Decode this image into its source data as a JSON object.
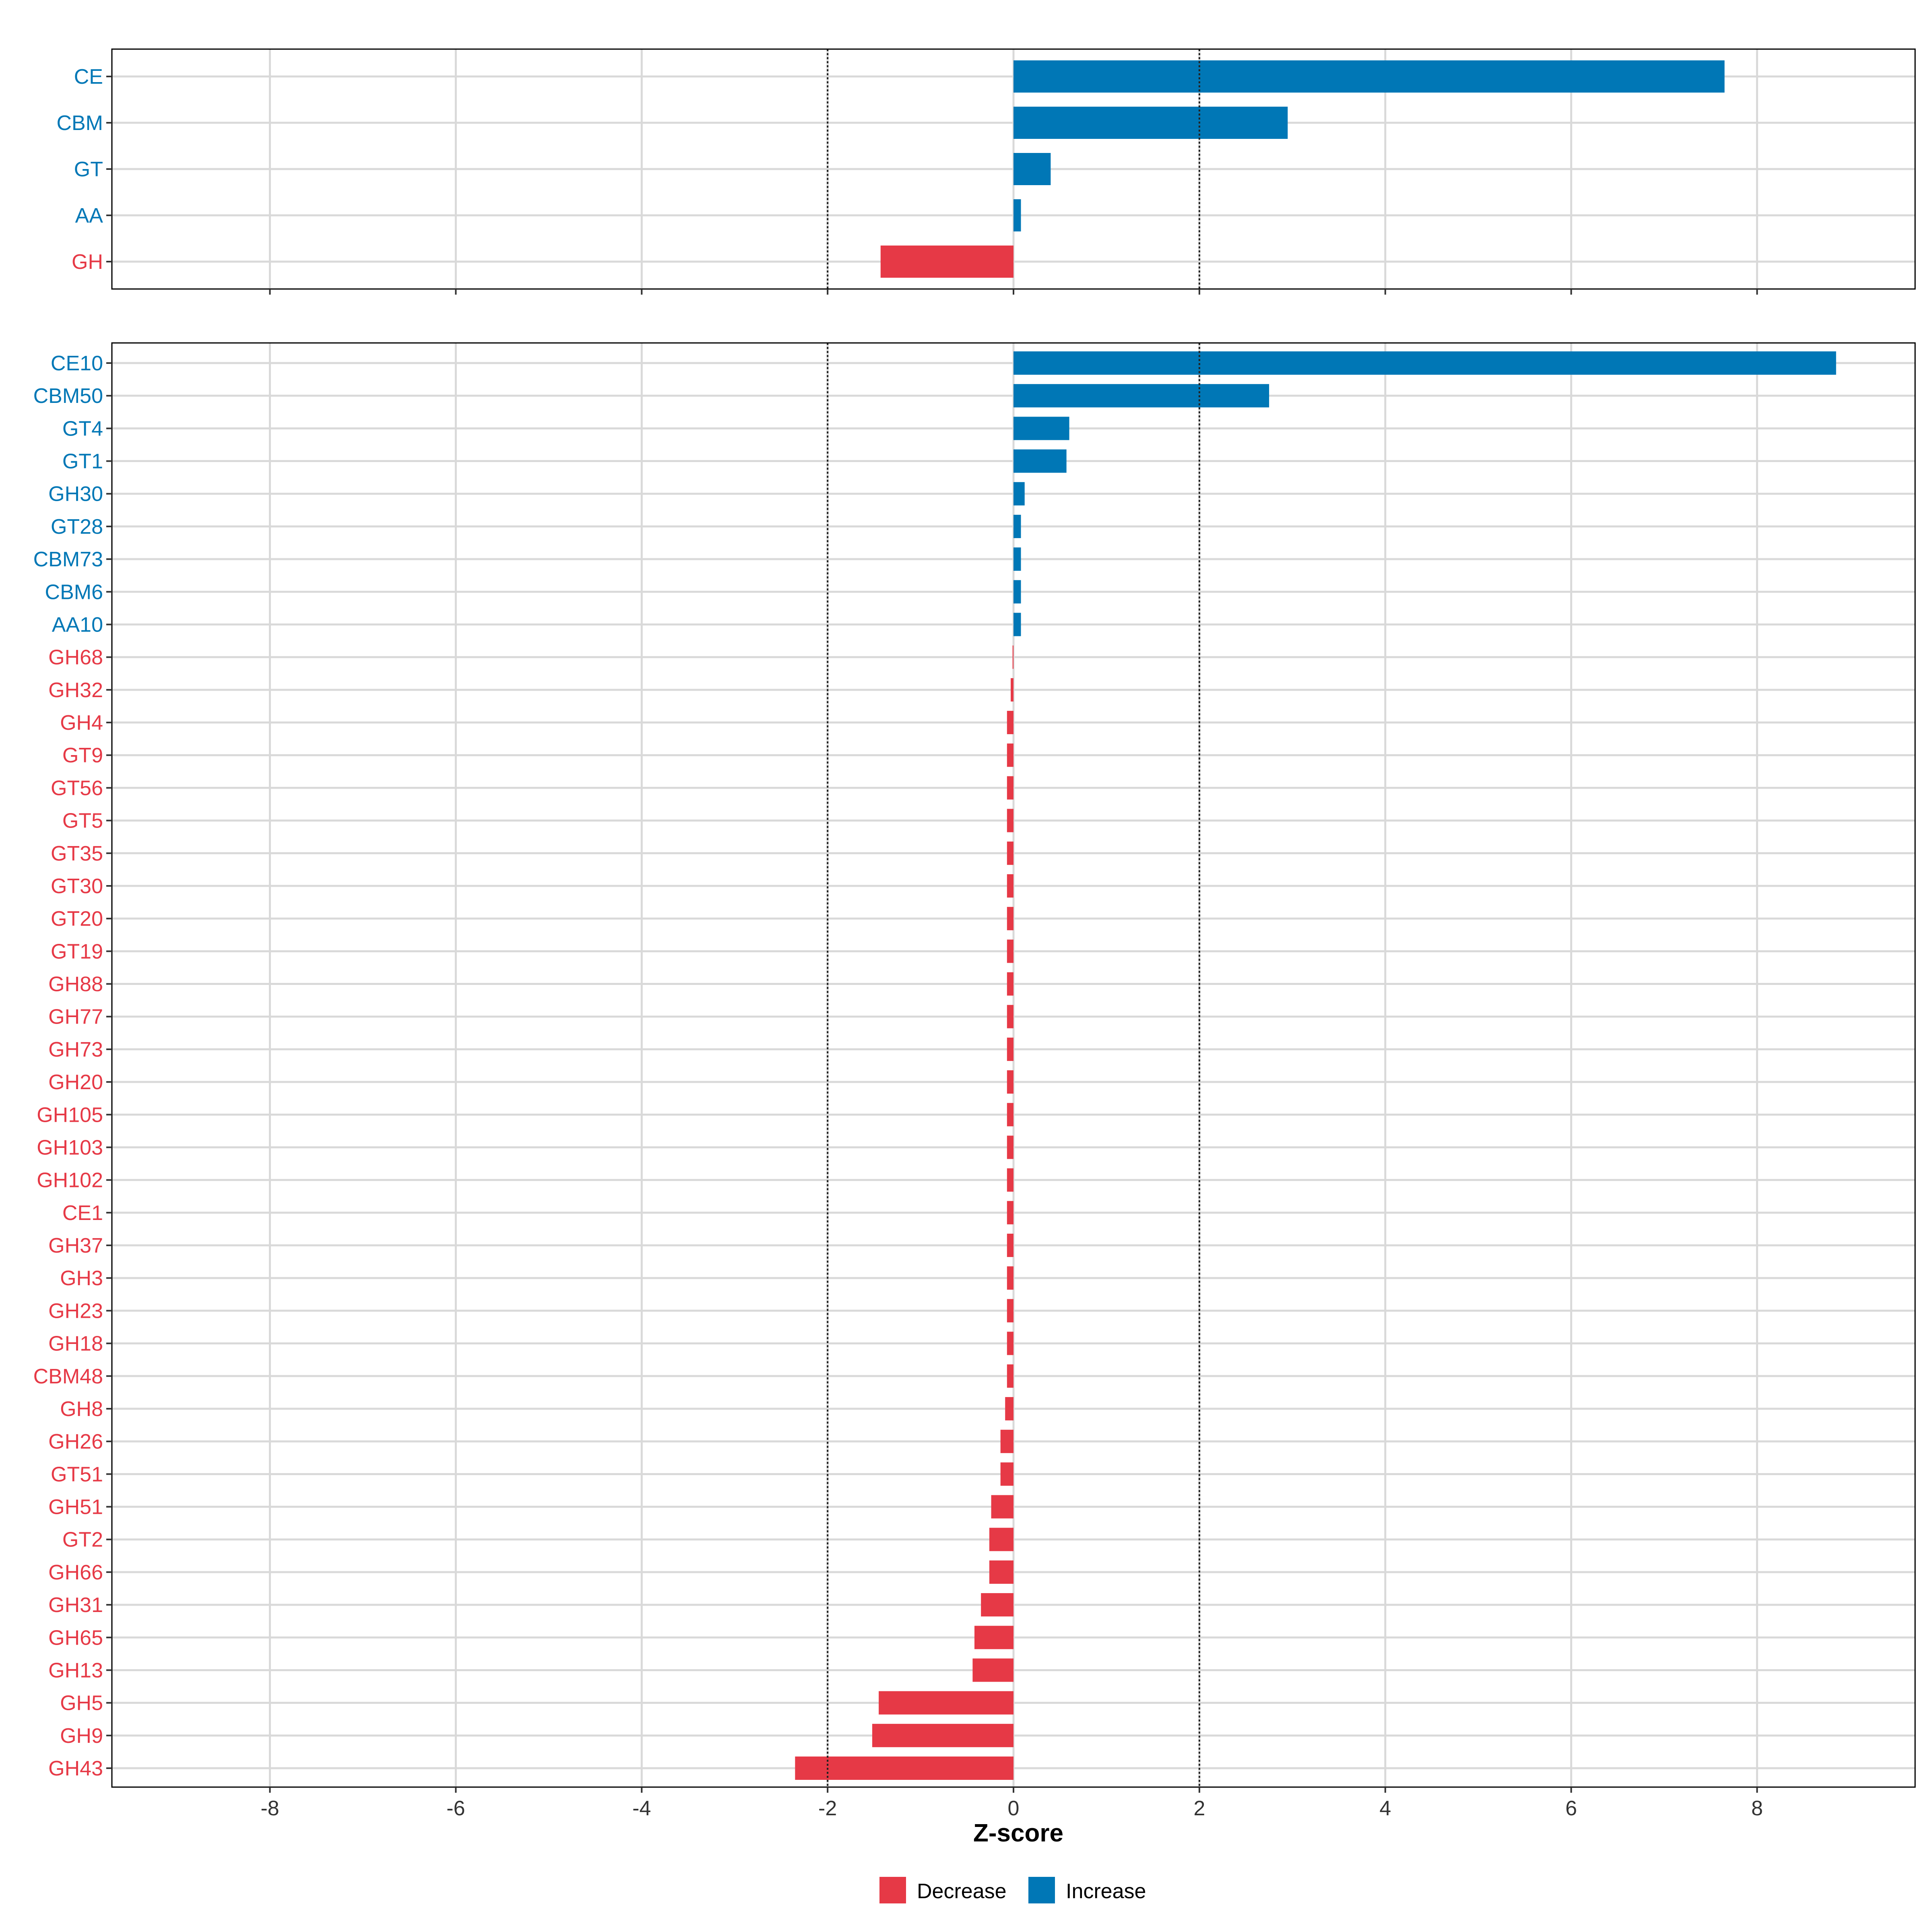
{
  "chart_data": {
    "type": "bar",
    "orientation": "horizontal",
    "xlabel": "Z-score",
    "xlim": [
      -9.7,
      9.7
    ],
    "x_ticks": [
      -8,
      -6,
      -4,
      -2,
      0,
      2,
      4,
      6,
      8
    ],
    "x_tick_labels": [
      "-8",
      "-6",
      "-4",
      "-2",
      "0",
      "2",
      "4",
      "6",
      "8"
    ],
    "threshold_lines": [
      -2,
      2
    ],
    "colors": {
      "Decrease": "#E63946",
      "Increase": "#0077B6"
    },
    "legend": {
      "position": "bottom",
      "entries": [
        "Decrease",
        "Increase"
      ]
    },
    "panels": [
      {
        "name": "class",
        "categories": [
          "CE",
          "CBM",
          "GT",
          "AA",
          "GH"
        ],
        "values": [
          7.65,
          2.95,
          0.4,
          0.08,
          -1.43
        ],
        "groups": [
          "Increase",
          "Increase",
          "Increase",
          "Increase",
          "Decrease"
        ]
      },
      {
        "name": "family",
        "categories": [
          "CE10",
          "CBM50",
          "GT4",
          "GT1",
          "GH30",
          "GT28",
          "CBM73",
          "CBM6",
          "AA10",
          "GH68",
          "GH32",
          "GH4",
          "GT9",
          "GT56",
          "GT5",
          "GT35",
          "GT30",
          "GT20",
          "GT19",
          "GH88",
          "GH77",
          "GH73",
          "GH20",
          "GH105",
          "GH103",
          "GH102",
          "CE1",
          "GH37",
          "GH3",
          "GH23",
          "GH18",
          "CBM48",
          "GH8",
          "GH26",
          "GT51",
          "GH51",
          "GT2",
          "GH66",
          "GH31",
          "GH65",
          "GH13",
          "GH5",
          "GH9",
          "GH43"
        ],
        "values": [
          8.85,
          2.75,
          0.6,
          0.57,
          0.12,
          0.08,
          0.08,
          0.08,
          0.08,
          -0.01,
          -0.03,
          -0.07,
          -0.07,
          -0.07,
          -0.07,
          -0.07,
          -0.07,
          -0.07,
          -0.07,
          -0.07,
          -0.07,
          -0.07,
          -0.07,
          -0.07,
          -0.07,
          -0.07,
          -0.07,
          -0.07,
          -0.07,
          -0.07,
          -0.07,
          -0.07,
          -0.09,
          -0.14,
          -0.14,
          -0.24,
          -0.26,
          -0.26,
          -0.35,
          -0.42,
          -0.44,
          -1.45,
          -1.52,
          -2.35
        ],
        "groups": [
          "Increase",
          "Increase",
          "Increase",
          "Increase",
          "Increase",
          "Increase",
          "Increase",
          "Increase",
          "Increase",
          "Decrease",
          "Decrease",
          "Decrease",
          "Decrease",
          "Decrease",
          "Decrease",
          "Decrease",
          "Decrease",
          "Decrease",
          "Decrease",
          "Decrease",
          "Decrease",
          "Decrease",
          "Decrease",
          "Decrease",
          "Decrease",
          "Decrease",
          "Decrease",
          "Decrease",
          "Decrease",
          "Decrease",
          "Decrease",
          "Decrease",
          "Decrease",
          "Decrease",
          "Decrease",
          "Decrease",
          "Decrease",
          "Decrease",
          "Decrease",
          "Decrease",
          "Decrease",
          "Decrease",
          "Decrease",
          "Decrease"
        ]
      }
    ]
  }
}
